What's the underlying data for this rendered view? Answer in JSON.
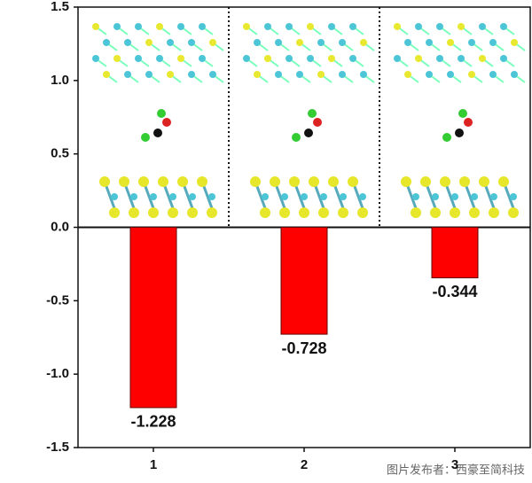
{
  "chart_data": {
    "type": "bar",
    "categories": [
      "1",
      "2",
      "3"
    ],
    "values": [
      -1.228,
      -0.728,
      -0.344
    ],
    "color": "#ff0000",
    "ylim": [
      -1.5,
      1.5
    ],
    "yticks": [
      -1.5,
      {
        "value": -1,
        "label": "-1.0"
      },
      -0.5,
      {
        "value": 0,
        "label": "0.0"
      },
      0.5,
      {
        "value": 1,
        "label": "1.0"
      },
      1.5
    ],
    "watermark": "图片发布者：西豪至简科技"
  }
}
